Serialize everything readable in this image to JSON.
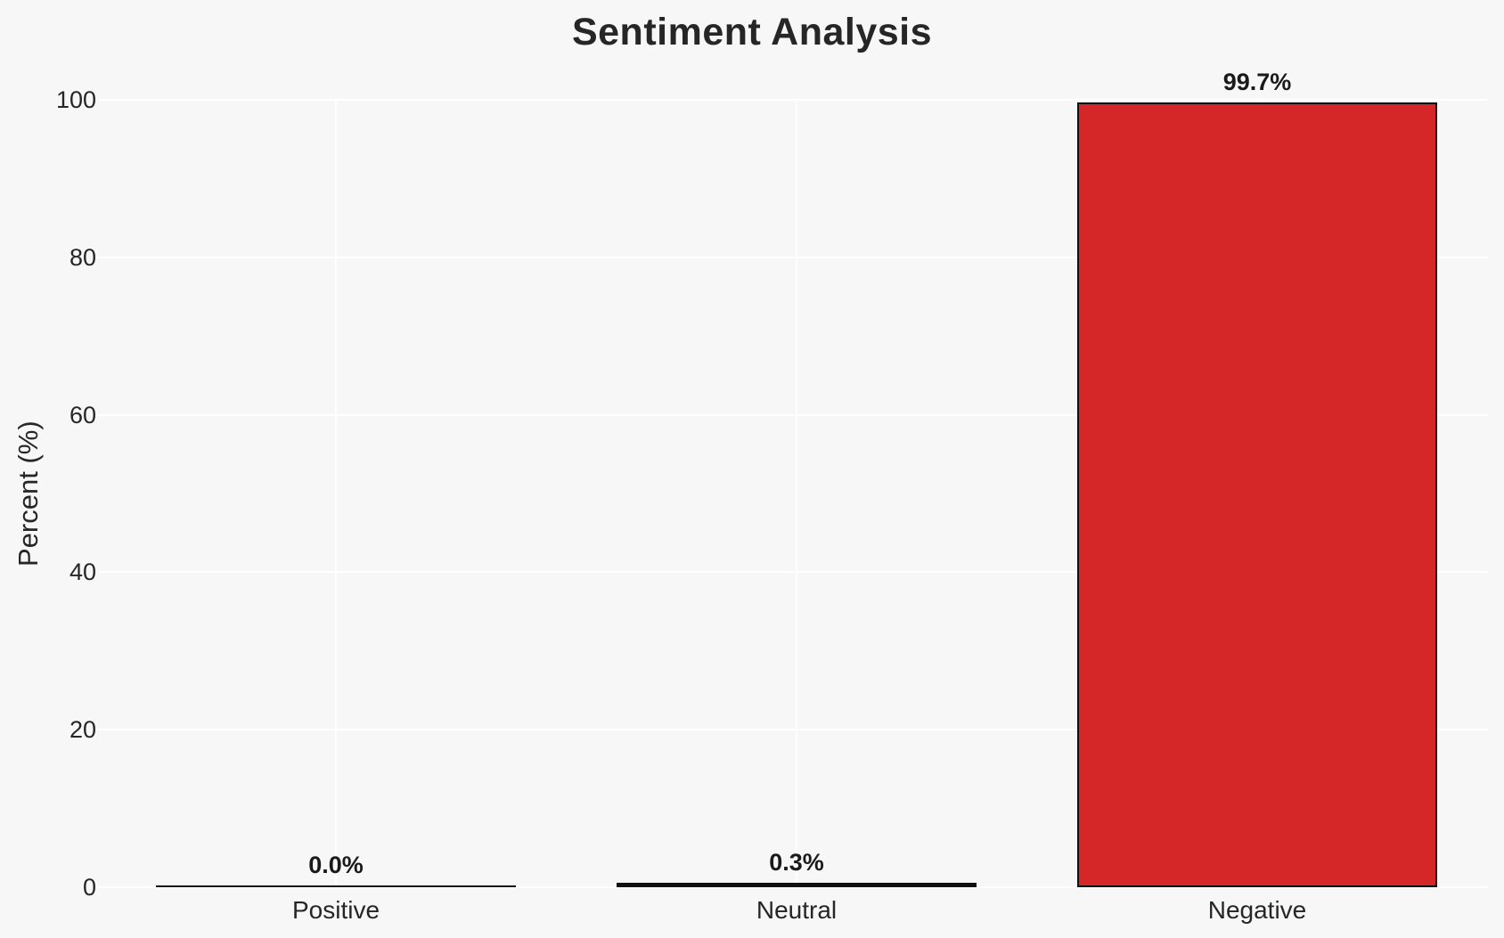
{
  "title": "Sentiment Analysis",
  "chart_data": {
    "type": "bar",
    "title": "Sentiment Analysis",
    "categories": [
      "Positive",
      "Neutral",
      "Negative"
    ],
    "values": [
      0.0,
      0.3,
      99.7
    ],
    "value_labels": [
      "0.0%",
      "0.3%",
      "99.7%"
    ],
    "xlabel": "",
    "ylabel": "Percent (%)",
    "ylim": [
      0,
      100
    ],
    "yticks": [
      0,
      20,
      40,
      60,
      80,
      100
    ],
    "grid": true,
    "legend": false,
    "bar_colors": [
      null,
      null,
      "#d62728"
    ],
    "bar_edge_color": "#111111",
    "background_color": "#f7f7f7",
    "gridline_color": "#ffffff",
    "text_color": "#262626",
    "bar_width_fraction": 0.78
  }
}
